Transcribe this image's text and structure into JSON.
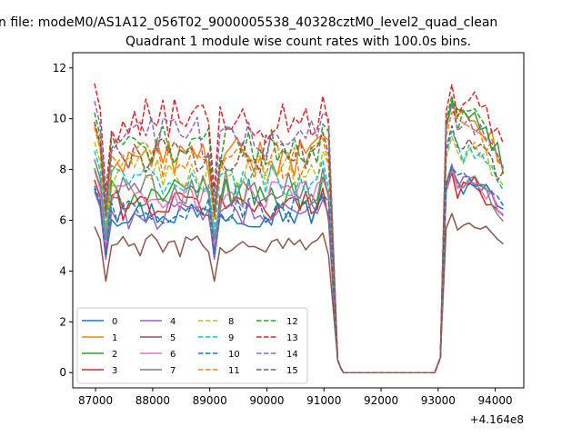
{
  "chart_data": {
    "type": "line",
    "suptitle": "n file: modeM0/AS1A12_056T02_9000005538_40328cztM0_level2_quad_clean",
    "title": "Quadrant 1 module wise count rates with 100.0s bins.",
    "xlabel": "",
    "ylabel": "",
    "x_offset_label": "+4.164e8",
    "xlim": [
      86600,
      94500
    ],
    "ylim": [
      -0.6,
      12.6
    ],
    "xticks": [
      87000,
      88000,
      89000,
      90000,
      91000,
      92000,
      93000,
      94000
    ],
    "xtick_labels": [
      "87000",
      "88000",
      "89000",
      "90000",
      "91000",
      "92000",
      "93000",
      "94000"
    ],
    "yticks": [
      0,
      2,
      4,
      6,
      8,
      10,
      12
    ],
    "ytick_labels": [
      "0",
      "2",
      "4",
      "6",
      "8",
      "10",
      "12"
    ],
    "legend_location": "lower-left",
    "segments": {
      "seg1_start": 86980,
      "seg1_end": 91140,
      "seg2_start": 93140,
      "seg2_end": 94180,
      "bin": 100,
      "gap_zero_from": 91340,
      "gap_zero_to": 92940
    },
    "series": [
      {
        "name": "0",
        "dash": "solid",
        "color": "#1f77b4",
        "level": 6.3,
        "recovered": 7.4
      },
      {
        "name": "1",
        "dash": "solid",
        "color": "#ff7f0e",
        "level": 8.5,
        "recovered": 9.8
      },
      {
        "name": "2",
        "dash": "solid",
        "color": "#2ca02c",
        "level": 7.0,
        "recovered": 9.9
      },
      {
        "name": "3",
        "dash": "solid",
        "color": "#d62728",
        "level": 6.6,
        "recovered": 7.3
      },
      {
        "name": "4",
        "dash": "solid",
        "color": "#9467bd",
        "level": 6.2,
        "recovered": 7.6
      },
      {
        "name": "5",
        "dash": "solid",
        "color": "#8c564b",
        "level": 5.0,
        "recovered": 5.8
      },
      {
        "name": "6",
        "dash": "solid",
        "color": "#e377c2",
        "level": 6.9,
        "recovered": 7.4
      },
      {
        "name": "7",
        "dash": "solid",
        "color": "#7f7f7f",
        "level": 7.3,
        "recovered": 7.5
      },
      {
        "name": "8",
        "dash": "dashed",
        "color": "#bcbd22",
        "level": 7.9,
        "recovered": 8.6
      },
      {
        "name": "9",
        "dash": "dashed",
        "color": "#17becf",
        "level": 7.6,
        "recovered": 8.8
      },
      {
        "name": "10",
        "dash": "dashed",
        "color": "#1f77b4",
        "level": 6.4,
        "recovered": 7.5
      },
      {
        "name": "11",
        "dash": "dashed",
        "color": "#ff7f0e",
        "level": 8.4,
        "recovered": 9.5
      },
      {
        "name": "12",
        "dash": "dashed",
        "color": "#2ca02c",
        "level": 8.9,
        "recovered": 10.1
      },
      {
        "name": "13",
        "dash": "dashed",
        "color": "#d62728",
        "level": 9.9,
        "recovered": 10.5
      },
      {
        "name": "14",
        "dash": "dashed",
        "color": "#9467bd",
        "level": 9.3,
        "recovered": 9.8
      },
      {
        "name": "15",
        "dash": "dashed",
        "color": "#8c564b",
        "level": 8.6,
        "recovered": 9.0
      }
    ]
  }
}
